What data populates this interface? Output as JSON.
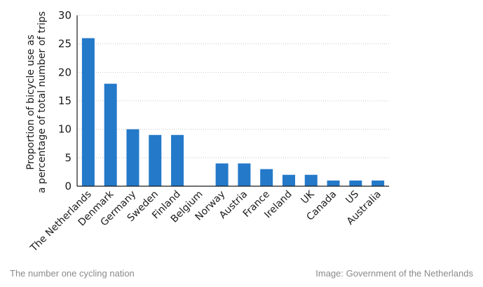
{
  "chart_data": {
    "type": "bar",
    "title": "",
    "xlabel": "",
    "ylabel_lines": [
      "Proportion of bicycle use as",
      "a percentage of total number of trips"
    ],
    "ylim": [
      0,
      30
    ],
    "yticks": [
      0,
      5,
      10,
      15,
      20,
      25,
      30
    ],
    "grid": true,
    "bar_color": "#2479c9",
    "categories": [
      "The Netherlands",
      "Denmark",
      "Germany",
      "Sweden",
      "Finland",
      "Belgium",
      "Norway",
      "Austria",
      "France",
      "Ireland",
      "UK",
      "Canada",
      "US",
      "Australia"
    ],
    "values": [
      26,
      18,
      10,
      9,
      9,
      0,
      4,
      4,
      3,
      2,
      2,
      1,
      1,
      1
    ]
  },
  "footer": {
    "caption": "The number one cycling nation",
    "credit": "Image: Government of the Netherlands"
  }
}
